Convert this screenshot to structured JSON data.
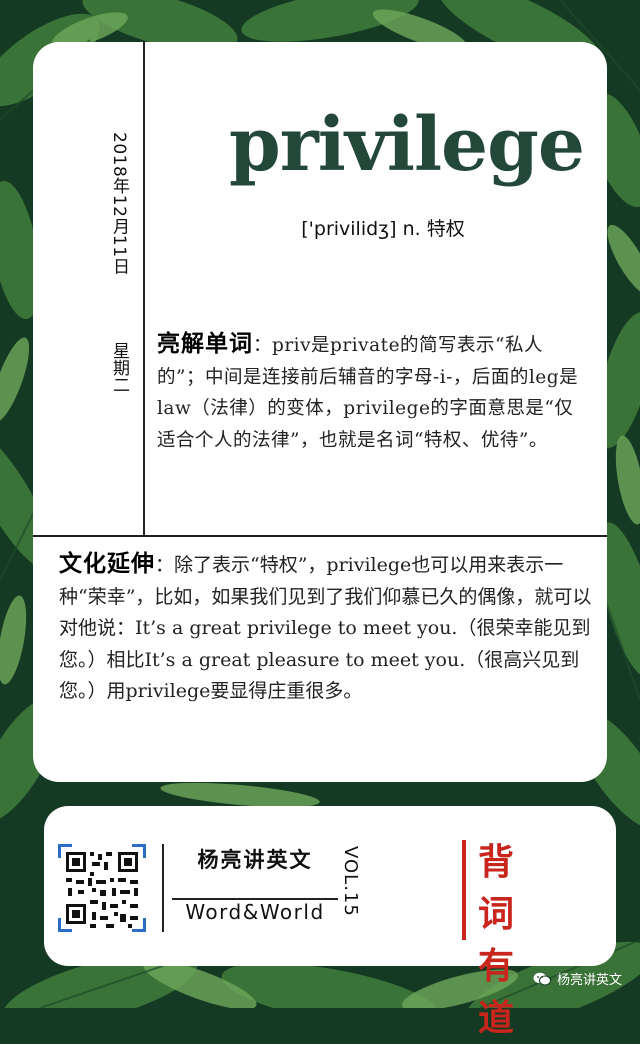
{
  "card": {
    "word": "privilege",
    "phonetic": "['privilidʒ] n. 特权",
    "date": "2018年12月11日",
    "weekday": "星期二",
    "explain_head": "亮解单词",
    "explain_body": "：priv是private的简写表示“私人的”；中间是连接前后辅音的字母-i-，后面的leg是law（法律）的变体，privilege的字面意思是“仅适合个人的法律”，也就是名词“特权、优待”。",
    "culture_head": "文化延伸",
    "culture_body": "：除了表示“特权”，privilege也可以用来表示一种“荣幸”，比如，如果我们见到了我们仰慕已久的偶像，就可以对他说：It’s a great privilege to meet you.（很荣幸能见到您。）相比It’s a great pleasure to meet you.（很高兴见到您。）用privilege要显得庄重很多。"
  },
  "footer": {
    "brand": "杨亮讲英文",
    "brand_sub": "Word&World",
    "volume": "VOL.15",
    "slogan_line1": "背 词",
    "slogan_line2": "有 道"
  },
  "watermark": "杨亮讲英文",
  "colors": {
    "word": "#23483a",
    "accent_red": "#c8251d",
    "background": "#143a24"
  },
  "icons": [
    "leaf-background",
    "qr-code-icon",
    "wechat-icon"
  ]
}
